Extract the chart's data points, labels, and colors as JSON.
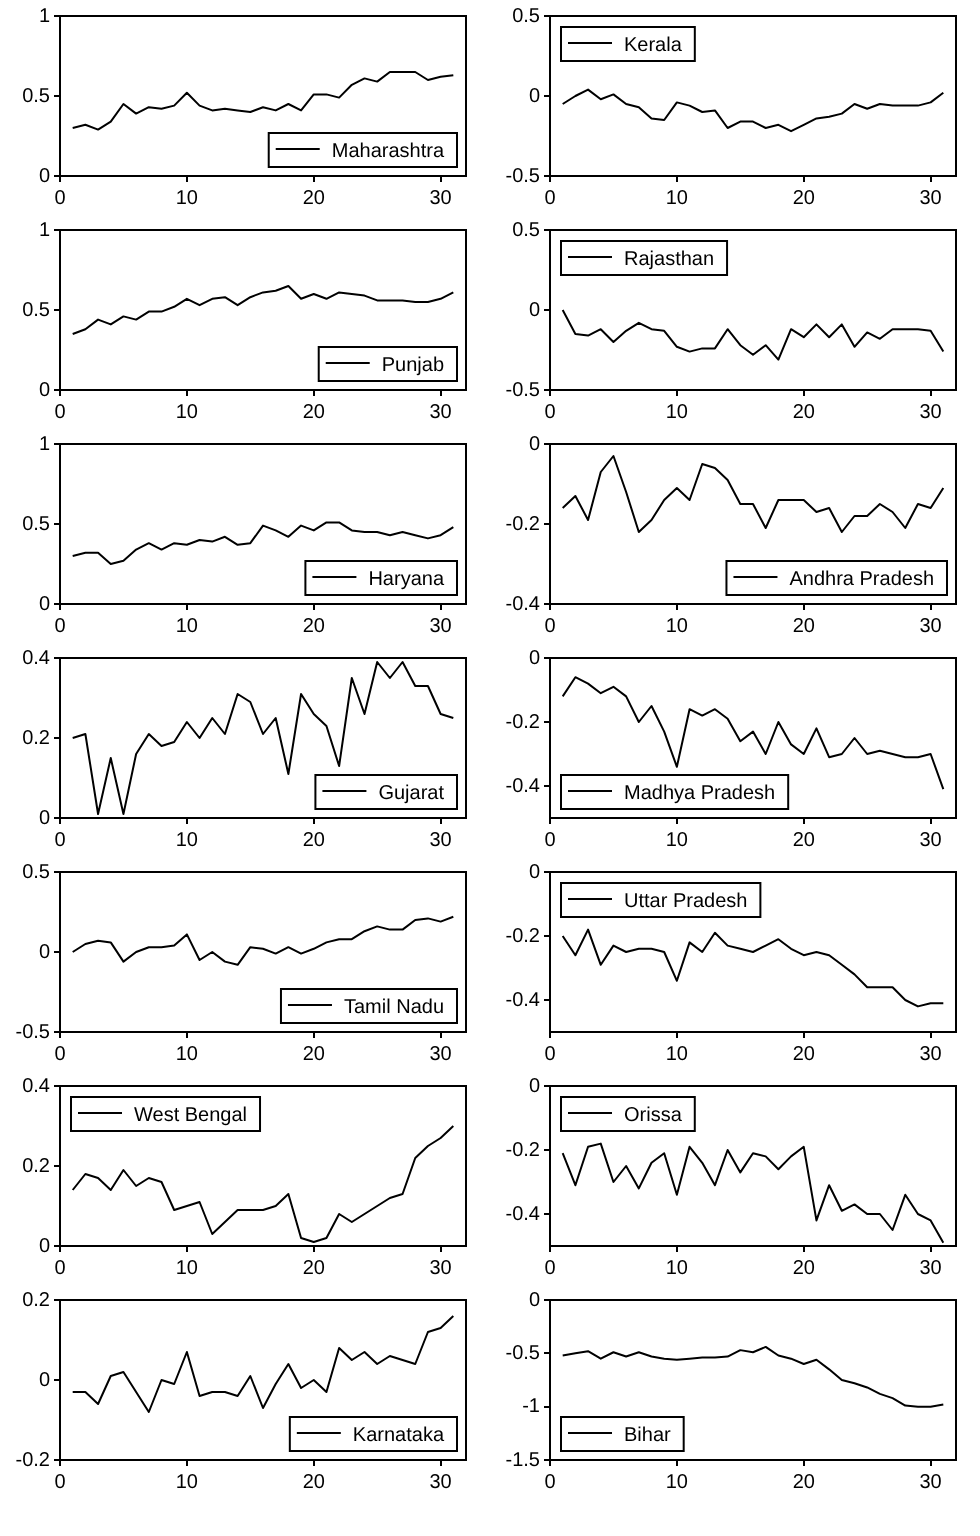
{
  "chart_data": [
    {
      "type": "line",
      "x": [
        1,
        2,
        3,
        4,
        5,
        6,
        7,
        8,
        9,
        10,
        11,
        12,
        13,
        14,
        15,
        16,
        17,
        18,
        19,
        20,
        21,
        22,
        23,
        24,
        25,
        26,
        27,
        28,
        29,
        30,
        31
      ],
      "xlim": [
        0,
        32
      ],
      "xticks": [
        0,
        10,
        20,
        30
      ],
      "ylim": [
        0,
        1
      ],
      "yticks": [
        0,
        0.5,
        1
      ],
      "legend": "bottom right",
      "series": [
        {
          "name": "Maharashtra",
          "color": "#000000",
          "values": [
            0.3,
            0.32,
            0.29,
            0.34,
            0.45,
            0.39,
            0.43,
            0.42,
            0.44,
            0.52,
            0.44,
            0.41,
            0.42,
            0.41,
            0.4,
            0.43,
            0.41,
            0.45,
            0.41,
            0.51,
            0.51,
            0.49,
            0.57,
            0.61,
            0.59,
            0.65,
            0.65,
            0.65,
            0.6,
            0.62,
            0.63
          ]
        }
      ]
    },
    {
      "type": "line",
      "x": [
        1,
        2,
        3,
        4,
        5,
        6,
        7,
        8,
        9,
        10,
        11,
        12,
        13,
        14,
        15,
        16,
        17,
        18,
        19,
        20,
        21,
        22,
        23,
        24,
        25,
        26,
        27,
        28,
        29,
        30,
        31
      ],
      "xlim": [
        0,
        32
      ],
      "xticks": [
        0,
        10,
        20,
        30
      ],
      "ylim": [
        -0.5,
        0.5
      ],
      "yticks": [
        -0.5,
        0,
        0.5
      ],
      "legend": "top left",
      "series": [
        {
          "name": "Kerala",
          "color": "#000000",
          "values": [
            -0.05,
            0.0,
            0.04,
            -0.02,
            0.01,
            -0.05,
            -0.07,
            -0.14,
            -0.15,
            -0.04,
            -0.06,
            -0.1,
            -0.09,
            -0.2,
            -0.16,
            -0.16,
            -0.2,
            -0.18,
            -0.22,
            -0.18,
            -0.14,
            -0.13,
            -0.11,
            -0.05,
            -0.08,
            -0.05,
            -0.06,
            -0.06,
            -0.06,
            -0.04,
            0.02
          ]
        }
      ]
    },
    {
      "type": "line",
      "x": [
        1,
        2,
        3,
        4,
        5,
        6,
        7,
        8,
        9,
        10,
        11,
        12,
        13,
        14,
        15,
        16,
        17,
        18,
        19,
        20,
        21,
        22,
        23,
        24,
        25,
        26,
        27,
        28,
        29,
        30,
        31
      ],
      "xlim": [
        0,
        32
      ],
      "xticks": [
        0,
        10,
        20,
        30
      ],
      "ylim": [
        0,
        1
      ],
      "yticks": [
        0,
        0.5,
        1
      ],
      "legend": "bottom right",
      "series": [
        {
          "name": "Punjab",
          "color": "#000000",
          "values": [
            0.35,
            0.38,
            0.44,
            0.41,
            0.46,
            0.44,
            0.49,
            0.49,
            0.52,
            0.57,
            0.53,
            0.57,
            0.58,
            0.53,
            0.58,
            0.61,
            0.62,
            0.65,
            0.57,
            0.6,
            0.57,
            0.61,
            0.6,
            0.59,
            0.56,
            0.56,
            0.56,
            0.55,
            0.55,
            0.57,
            0.61
          ]
        }
      ]
    },
    {
      "type": "line",
      "x": [
        1,
        2,
        3,
        4,
        5,
        6,
        7,
        8,
        9,
        10,
        11,
        12,
        13,
        14,
        15,
        16,
        17,
        18,
        19,
        20,
        21,
        22,
        23,
        24,
        25,
        26,
        27,
        28,
        29,
        30,
        31
      ],
      "xlim": [
        0,
        32
      ],
      "xticks": [
        0,
        10,
        20,
        30
      ],
      "ylim": [
        -0.5,
        0.5
      ],
      "yticks": [
        -0.5,
        0,
        0.5
      ],
      "legend": "top left",
      "series": [
        {
          "name": "Rajasthan",
          "color": "#000000",
          "values": [
            0.0,
            -0.15,
            -0.16,
            -0.12,
            -0.2,
            -0.13,
            -0.08,
            -0.12,
            -0.13,
            -0.23,
            -0.26,
            -0.24,
            -0.24,
            -0.12,
            -0.22,
            -0.28,
            -0.22,
            -0.31,
            -0.12,
            -0.17,
            -0.09,
            -0.17,
            -0.09,
            -0.23,
            -0.14,
            -0.18,
            -0.12,
            -0.12,
            -0.12,
            -0.13,
            -0.26
          ]
        }
      ]
    },
    {
      "type": "line",
      "x": [
        1,
        2,
        3,
        4,
        5,
        6,
        7,
        8,
        9,
        10,
        11,
        12,
        13,
        14,
        15,
        16,
        17,
        18,
        19,
        20,
        21,
        22,
        23,
        24,
        25,
        26,
        27,
        28,
        29,
        30,
        31
      ],
      "xlim": [
        0,
        32
      ],
      "xticks": [
        0,
        10,
        20,
        30
      ],
      "ylim": [
        0,
        1
      ],
      "yticks": [
        0,
        0.5,
        1
      ],
      "legend": "bottom right",
      "series": [
        {
          "name": "Haryana",
          "color": "#000000",
          "values": [
            0.3,
            0.32,
            0.32,
            0.25,
            0.27,
            0.34,
            0.38,
            0.34,
            0.38,
            0.37,
            0.4,
            0.39,
            0.42,
            0.37,
            0.38,
            0.49,
            0.46,
            0.42,
            0.49,
            0.46,
            0.51,
            0.51,
            0.46,
            0.45,
            0.45,
            0.43,
            0.45,
            0.43,
            0.41,
            0.43,
            0.48
          ]
        }
      ]
    },
    {
      "type": "line",
      "x": [
        1,
        2,
        3,
        4,
        5,
        6,
        7,
        8,
        9,
        10,
        11,
        12,
        13,
        14,
        15,
        16,
        17,
        18,
        19,
        20,
        21,
        22,
        23,
        24,
        25,
        26,
        27,
        28,
        29,
        30,
        31
      ],
      "xlim": [
        0,
        32
      ],
      "xticks": [
        0,
        10,
        20,
        30
      ],
      "ylim": [
        -0.4,
        0
      ],
      "yticks": [
        -0.4,
        -0.2,
        0
      ],
      "legend": "bottom right",
      "series": [
        {
          "name": "Andhra Pradesh",
          "color": "#000000",
          "values": [
            -0.16,
            -0.13,
            -0.19,
            -0.07,
            -0.03,
            -0.12,
            -0.22,
            -0.19,
            -0.14,
            -0.11,
            -0.14,
            -0.05,
            -0.06,
            -0.09,
            -0.15,
            -0.15,
            -0.21,
            -0.14,
            -0.14,
            -0.14,
            -0.17,
            -0.16,
            -0.22,
            -0.18,
            -0.18,
            -0.15,
            -0.17,
            -0.21,
            -0.15,
            -0.16,
            -0.11
          ]
        }
      ]
    },
    {
      "type": "line",
      "x": [
        1,
        2,
        3,
        4,
        5,
        6,
        7,
        8,
        9,
        10,
        11,
        12,
        13,
        14,
        15,
        16,
        17,
        18,
        19,
        20,
        21,
        22,
        23,
        24,
        25,
        26,
        27,
        28,
        29,
        30,
        31
      ],
      "xlim": [
        0,
        32
      ],
      "xticks": [
        0,
        10,
        20,
        30
      ],
      "ylim": [
        0,
        0.4
      ],
      "yticks": [
        0,
        0.2,
        0.4
      ],
      "legend": "bottom right",
      "series": [
        {
          "name": "Gujarat",
          "color": "#000000",
          "values": [
            0.2,
            0.21,
            0.01,
            0.15,
            0.01,
            0.16,
            0.21,
            0.18,
            0.19,
            0.24,
            0.2,
            0.25,
            0.21,
            0.31,
            0.29,
            0.21,
            0.25,
            0.11,
            0.31,
            0.26,
            0.23,
            0.13,
            0.35,
            0.26,
            0.39,
            0.35,
            0.39,
            0.33,
            0.33,
            0.26,
            0.25
          ]
        }
      ]
    },
    {
      "type": "line",
      "x": [
        1,
        2,
        3,
        4,
        5,
        6,
        7,
        8,
        9,
        10,
        11,
        12,
        13,
        14,
        15,
        16,
        17,
        18,
        19,
        20,
        21,
        22,
        23,
        24,
        25,
        26,
        27,
        28,
        29,
        30,
        31
      ],
      "xlim": [
        0,
        32
      ],
      "xticks": [
        0,
        10,
        20,
        30
      ],
      "ylim": [
        -0.5,
        0
      ],
      "yticks": [
        -0.4,
        -0.2,
        0
      ],
      "legend": "bottom left",
      "series": [
        {
          "name": "Madhya Pradesh",
          "color": "#000000",
          "values": [
            -0.12,
            -0.06,
            -0.08,
            -0.11,
            -0.09,
            -0.12,
            -0.2,
            -0.15,
            -0.23,
            -0.34,
            -0.16,
            -0.18,
            -0.16,
            -0.19,
            -0.26,
            -0.23,
            -0.3,
            -0.2,
            -0.27,
            -0.3,
            -0.22,
            -0.31,
            -0.3,
            -0.25,
            -0.3,
            -0.29,
            -0.3,
            -0.31,
            -0.31,
            -0.3,
            -0.41
          ]
        }
      ]
    },
    {
      "type": "line",
      "x": [
        1,
        2,
        3,
        4,
        5,
        6,
        7,
        8,
        9,
        10,
        11,
        12,
        13,
        14,
        15,
        16,
        17,
        18,
        19,
        20,
        21,
        22,
        23,
        24,
        25,
        26,
        27,
        28,
        29,
        30,
        31
      ],
      "xlim": [
        0,
        32
      ],
      "xticks": [
        0,
        10,
        20,
        30
      ],
      "ylim": [
        -0.5,
        0.5
      ],
      "yticks": [
        -0.5,
        0,
        0.5
      ],
      "legend": "bottom right",
      "series": [
        {
          "name": "Tamil Nadu",
          "color": "#000000",
          "values": [
            0.0,
            0.05,
            0.07,
            0.06,
            -0.06,
            0.0,
            0.03,
            0.03,
            0.04,
            0.11,
            -0.05,
            0.0,
            -0.06,
            -0.08,
            0.03,
            0.02,
            -0.01,
            0.03,
            -0.01,
            0.02,
            0.06,
            0.08,
            0.08,
            0.13,
            0.16,
            0.14,
            0.14,
            0.2,
            0.21,
            0.19,
            0.22
          ]
        }
      ]
    },
    {
      "type": "line",
      "x": [
        1,
        2,
        3,
        4,
        5,
        6,
        7,
        8,
        9,
        10,
        11,
        12,
        13,
        14,
        15,
        16,
        17,
        18,
        19,
        20,
        21,
        22,
        23,
        24,
        25,
        26,
        27,
        28,
        29,
        30,
        31
      ],
      "xlim": [
        0,
        32
      ],
      "xticks": [
        0,
        10,
        20,
        30
      ],
      "ylim": [
        -0.5,
        0
      ],
      "yticks": [
        -0.4,
        -0.2,
        0
      ],
      "legend": "top left",
      "series": [
        {
          "name": "Uttar Pradesh",
          "color": "#000000",
          "values": [
            -0.2,
            -0.26,
            -0.18,
            -0.29,
            -0.23,
            -0.25,
            -0.24,
            -0.24,
            -0.25,
            -0.34,
            -0.22,
            -0.25,
            -0.19,
            -0.23,
            -0.24,
            -0.25,
            -0.23,
            -0.21,
            -0.24,
            -0.26,
            -0.25,
            -0.26,
            -0.29,
            -0.32,
            -0.36,
            -0.36,
            -0.36,
            -0.4,
            -0.42,
            -0.41,
            -0.41
          ]
        }
      ]
    },
    {
      "type": "line",
      "x": [
        1,
        2,
        3,
        4,
        5,
        6,
        7,
        8,
        9,
        10,
        11,
        12,
        13,
        14,
        15,
        16,
        17,
        18,
        19,
        20,
        21,
        22,
        23,
        24,
        25,
        26,
        27,
        28,
        29,
        30,
        31
      ],
      "xlim": [
        0,
        32
      ],
      "xticks": [
        0,
        10,
        20,
        30
      ],
      "ylim": [
        0,
        0.4
      ],
      "yticks": [
        0,
        0.2,
        0.4
      ],
      "legend": "top left",
      "series": [
        {
          "name": "West Bengal",
          "color": "#000000",
          "values": [
            0.14,
            0.18,
            0.17,
            0.14,
            0.19,
            0.15,
            0.17,
            0.16,
            0.09,
            0.1,
            0.11,
            0.03,
            0.06,
            0.09,
            0.09,
            0.09,
            0.1,
            0.13,
            0.02,
            0.01,
            0.02,
            0.08,
            0.06,
            0.08,
            0.1,
            0.12,
            0.13,
            0.22,
            0.25,
            0.27,
            0.3
          ]
        }
      ]
    },
    {
      "type": "line",
      "x": [
        1,
        2,
        3,
        4,
        5,
        6,
        7,
        8,
        9,
        10,
        11,
        12,
        13,
        14,
        15,
        16,
        17,
        18,
        19,
        20,
        21,
        22,
        23,
        24,
        25,
        26,
        27,
        28,
        29,
        30,
        31
      ],
      "xlim": [
        0,
        32
      ],
      "xticks": [
        0,
        10,
        20,
        30
      ],
      "ylim": [
        -0.5,
        0
      ],
      "yticks": [
        -0.4,
        -0.2,
        0
      ],
      "legend": "top left",
      "series": [
        {
          "name": "Orissa",
          "color": "#000000",
          "values": [
            -0.21,
            -0.31,
            -0.19,
            -0.18,
            -0.3,
            -0.25,
            -0.32,
            -0.24,
            -0.21,
            -0.34,
            -0.19,
            -0.24,
            -0.31,
            -0.2,
            -0.27,
            -0.21,
            -0.22,
            -0.26,
            -0.22,
            -0.19,
            -0.42,
            -0.31,
            -0.39,
            -0.37,
            -0.4,
            -0.4,
            -0.45,
            -0.34,
            -0.4,
            -0.42,
            -0.49
          ]
        }
      ]
    },
    {
      "type": "line",
      "x": [
        1,
        2,
        3,
        4,
        5,
        6,
        7,
        8,
        9,
        10,
        11,
        12,
        13,
        14,
        15,
        16,
        17,
        18,
        19,
        20,
        21,
        22,
        23,
        24,
        25,
        26,
        27,
        28,
        29,
        30,
        31
      ],
      "xlim": [
        0,
        32
      ],
      "xticks": [
        0,
        10,
        20,
        30
      ],
      "ylim": [
        -0.2,
        0.2
      ],
      "yticks": [
        -0.2,
        0,
        0.2
      ],
      "legend": "bottom right",
      "series": [
        {
          "name": "Karnataka",
          "color": "#000000",
          "values": [
            -0.03,
            -0.03,
            -0.06,
            0.01,
            0.02,
            -0.03,
            -0.08,
            0.0,
            -0.01,
            0.07,
            -0.04,
            -0.03,
            -0.03,
            -0.04,
            0.01,
            -0.07,
            -0.01,
            0.04,
            -0.02,
            0.0,
            -0.03,
            0.08,
            0.05,
            0.07,
            0.04,
            0.06,
            0.05,
            0.04,
            0.12,
            0.13,
            0.16
          ]
        }
      ]
    },
    {
      "type": "line",
      "x": [
        1,
        2,
        3,
        4,
        5,
        6,
        7,
        8,
        9,
        10,
        11,
        12,
        13,
        14,
        15,
        16,
        17,
        18,
        19,
        20,
        21,
        22,
        23,
        24,
        25,
        26,
        27,
        28,
        29,
        30,
        31
      ],
      "xlim": [
        0,
        32
      ],
      "xticks": [
        0,
        10,
        20,
        30
      ],
      "ylim": [
        -1.5,
        0
      ],
      "yticks": [
        -1.5,
        -1,
        -0.5,
        0
      ],
      "legend": "bottom left",
      "series": [
        {
          "name": "Bihar",
          "color": "#000000",
          "values": [
            -0.52,
            -0.5,
            -0.48,
            -0.55,
            -0.49,
            -0.53,
            -0.49,
            -0.53,
            -0.55,
            -0.56,
            -0.55,
            -0.54,
            -0.54,
            -0.53,
            -0.47,
            -0.49,
            -0.44,
            -0.52,
            -0.55,
            -0.6,
            -0.56,
            -0.65,
            -0.75,
            -0.78,
            -0.82,
            -0.88,
            -0.92,
            -0.99,
            -1.0,
            -1.0,
            -0.98
          ]
        }
      ]
    }
  ]
}
